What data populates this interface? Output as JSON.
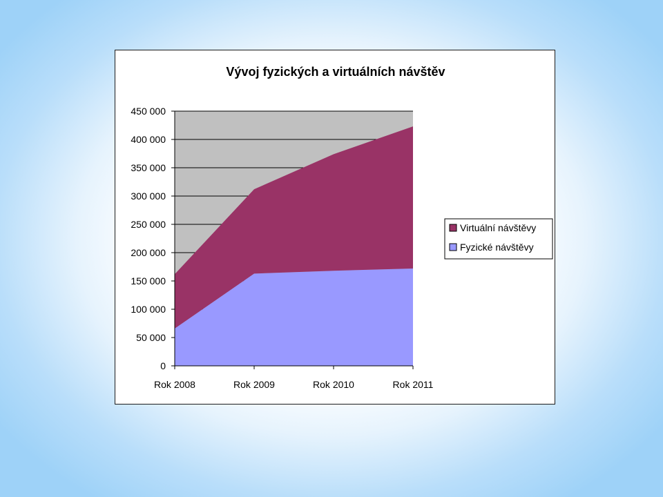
{
  "chart_data": {
    "type": "area",
    "stacked": true,
    "title": "Vývoj fyzických a virtuálních návštěv",
    "categories": [
      "Rok 2008",
      "Rok 2009",
      "Rok 2010",
      "Rok 2011"
    ],
    "series": [
      {
        "name": "Fyzické návštěvy",
        "values": [
          66000,
          163000,
          168000,
          172000
        ],
        "color": "#9999ff"
      },
      {
        "name": "Virtuální návštěvy",
        "values": [
          96000,
          149000,
          206000,
          251000
        ],
        "color": "#993366"
      }
    ],
    "ylim": [
      0,
      450000
    ],
    "yticks": [
      0,
      50000,
      100000,
      150000,
      200000,
      250000,
      300000,
      350000,
      400000,
      450000
    ],
    "ytick_labels": [
      "0",
      "50 000",
      "100 000",
      "150 000",
      "200 000",
      "250 000",
      "300 000",
      "350 000",
      "400 000",
      "450 000"
    ],
    "xlabel": "",
    "ylabel": "",
    "grid": true,
    "plot_background": "#c0c0c0",
    "legend_position": "right",
    "legend_order": [
      "Virtuální návštěvy",
      "Fyzické návštěvy"
    ]
  }
}
